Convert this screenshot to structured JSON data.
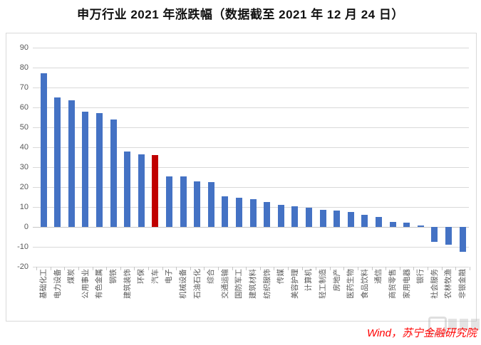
{
  "title": "申万行业 2021 年涨跌幅（数据截至 2021 年 12 月 24 日）",
  "footer": {
    "source_note": "Wind，苏宁金融研究院"
  },
  "chart_data": {
    "type": "bar",
    "title": "申万行业 2021 年涨跌幅（数据截至 2021 年 12 月 24 日）",
    "xlabel": "",
    "ylabel": "",
    "ylim": [
      -20,
      90
    ],
    "yticks": [
      90,
      80,
      70,
      60,
      50,
      40,
      30,
      20,
      10,
      0,
      -10,
      -20
    ],
    "grid": true,
    "legend": false,
    "categories": [
      "基础化工",
      "电力设备",
      "煤炭",
      "公用事业",
      "有色金属",
      "钢铁",
      "建筑装饰",
      "环保",
      "汽车",
      "电子",
      "机械设备",
      "石油石化",
      "综合",
      "交通运输",
      "国防军工",
      "建筑材料",
      "纺织服饰",
      "传媒",
      "美容护理",
      "计算机",
      "轻工制造",
      "房地产",
      "医药生物",
      "食品饮料",
      "通信",
      "商贸零售",
      "家用电器",
      "银行",
      "社会服务",
      "农林牧渔",
      "非银金融"
    ],
    "values": [
      77,
      65,
      63.5,
      58,
      57,
      54,
      38,
      36.5,
      36,
      25.5,
      25.5,
      23,
      22.5,
      15.5,
      14.5,
      14,
      12.5,
      11,
      10.5,
      9.5,
      8.5,
      8.2,
      7.4,
      6,
      5,
      2.4,
      2.1,
      0.8,
      -7.6,
      -8.8,
      -12.5
    ],
    "highlight_index": 8,
    "highlight_category": "汽车",
    "colors": {
      "bar": "#4472c4",
      "highlight": "#c00000",
      "grid": "#d9d9d9",
      "axis_text": "#595959",
      "title_text": "#111111",
      "source_text": "#ff0000"
    }
  }
}
